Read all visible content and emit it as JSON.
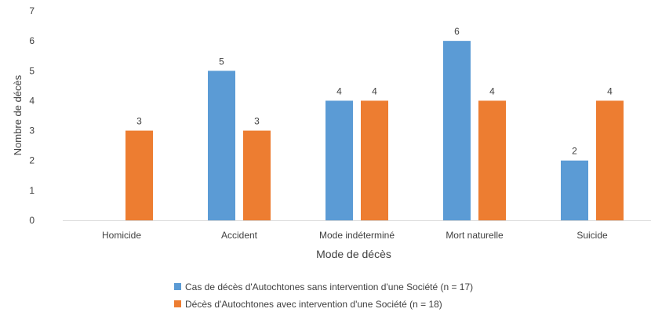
{
  "chart_data": {
    "type": "bar",
    "title": "",
    "xlabel": "Mode de décès",
    "ylabel": "Nombre de décès",
    "categories": [
      "Homicide",
      "Accident",
      "Mode indéterminé",
      "Mort naturelle",
      "Suicide"
    ],
    "ylim": [
      0,
      7
    ],
    "yticks": [
      0,
      1,
      2,
      3,
      4,
      5,
      6,
      7
    ],
    "series": [
      {
        "name": "Cas de décès d'Autochtones sans intervention d'une Société  (n = 17)",
        "color": "#5b9bd5",
        "values": [
          null,
          5,
          4,
          6,
          2
        ]
      },
      {
        "name": "Décès d'Autochtones avec intervention d'une Société  (n = 18)",
        "color": "#ed7d31",
        "values": [
          3,
          3,
          4,
          4,
          4
        ]
      }
    ],
    "legend_position": "bottom",
    "grid": false
  }
}
